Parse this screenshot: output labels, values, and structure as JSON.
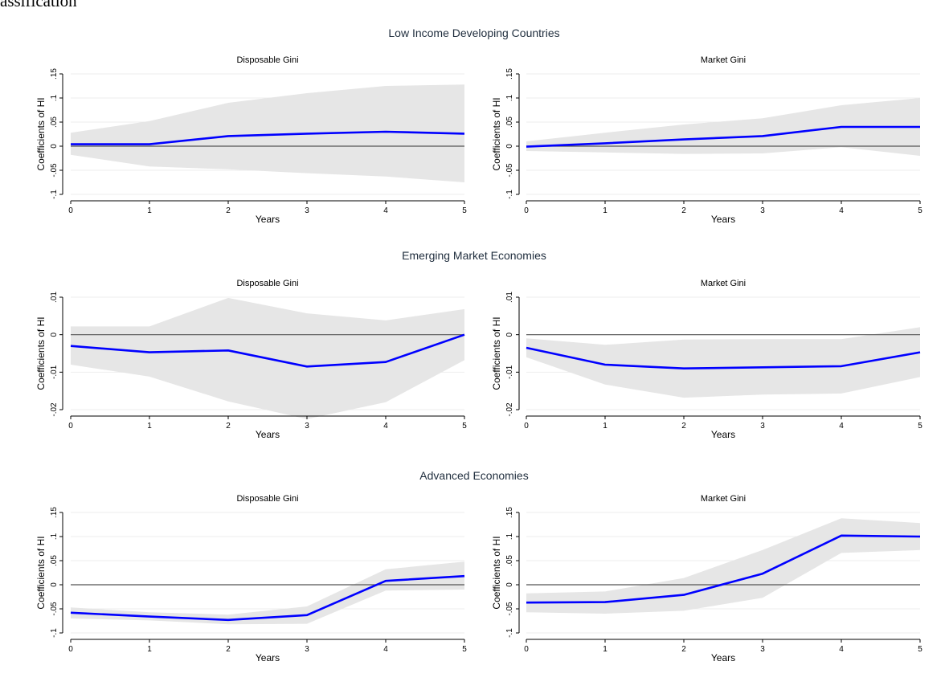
{
  "page": {
    "title_fragment": "assification"
  },
  "figure": {
    "band_color": "#e6e6e6",
    "line_color": "#0000ff",
    "zero_color": "#555555",
    "grid_color": "#eeeeee",
    "label_color": "#1f2d3d"
  },
  "chart_data": [
    {
      "type": "line",
      "group_title": "Low Income Developing Countries",
      "title": "Disposable Gini",
      "xlabel": "Years",
      "ylabel": "Coefficients of HI",
      "x": [
        0,
        1,
        2,
        3,
        4,
        5
      ],
      "xlim": [
        0,
        5
      ],
      "ylim": [
        -0.1,
        0.15
      ],
      "yticks": [
        -0.1,
        -0.05,
        0,
        0.05,
        0.1,
        0.15
      ],
      "ytick_labels": [
        "-.1",
        "-.05",
        "0",
        ".05",
        ".1",
        ".15"
      ],
      "grid": true,
      "series": [
        {
          "role": "estimate",
          "values": [
            0.004,
            0.004,
            0.021,
            0.026,
            0.03,
            0.026
          ]
        },
        {
          "role": "band-upper",
          "values": [
            0.028,
            0.052,
            0.09,
            0.11,
            0.125,
            0.128
          ]
        },
        {
          "role": "band-lower",
          "values": [
            -0.018,
            -0.042,
            -0.048,
            -0.056,
            -0.063,
            -0.075
          ]
        }
      ]
    },
    {
      "type": "line",
      "group_title": "Low Income Developing Countries",
      "title": "Market Gini",
      "xlabel": "Years",
      "ylabel": "Coefficients of HI",
      "x": [
        0,
        1,
        2,
        3,
        4,
        5
      ],
      "xlim": [
        0,
        5
      ],
      "ylim": [
        -0.1,
        0.15
      ],
      "yticks": [
        -0.1,
        -0.05,
        0,
        0.05,
        0.1,
        0.15
      ],
      "ytick_labels": [
        "-.1",
        "-.05",
        "0",
        ".05",
        ".1",
        ".15"
      ],
      "grid": true,
      "series": [
        {
          "role": "estimate",
          "values": [
            -0.001,
            0.006,
            0.014,
            0.021,
            0.04,
            0.04
          ]
        },
        {
          "role": "band-upper",
          "values": [
            0.01,
            0.028,
            0.045,
            0.058,
            0.085,
            0.1
          ]
        },
        {
          "role": "band-lower",
          "values": [
            -0.01,
            -0.013,
            -0.016,
            -0.015,
            -0.002,
            -0.02
          ]
        }
      ]
    },
    {
      "type": "line",
      "group_title": "Emerging Market Economies",
      "title": "Disposable Gini",
      "xlabel": "Years",
      "ylabel": "Coefficients of HI",
      "x": [
        0,
        1,
        2,
        3,
        4,
        5
      ],
      "xlim": [
        0,
        5
      ],
      "ylim": [
        -0.02,
        0.01
      ],
      "yticks": [
        -0.02,
        -0.01,
        0,
        0.01
      ],
      "ytick_labels": [
        "-.02",
        "-.01",
        "0",
        ".01"
      ],
      "grid": true,
      "series": [
        {
          "role": "estimate",
          "values": [
            -0.003,
            -0.0047,
            -0.0042,
            -0.0085,
            -0.0073,
            0.0
          ]
        },
        {
          "role": "band-upper",
          "values": [
            0.0022,
            0.0022,
            0.0098,
            0.0057,
            0.0038,
            0.0068
          ]
        },
        {
          "role": "band-lower",
          "values": [
            -0.008,
            -0.0112,
            -0.0178,
            -0.0225,
            -0.018,
            -0.0068
          ]
        }
      ]
    },
    {
      "type": "line",
      "group_title": "Emerging Market Economies",
      "title": "Market Gini",
      "xlabel": "Years",
      "ylabel": "Coefficients of HI",
      "x": [
        0,
        1,
        2,
        3,
        4,
        5
      ],
      "xlim": [
        0,
        5
      ],
      "ylim": [
        -0.02,
        0.01
      ],
      "yticks": [
        -0.02,
        -0.01,
        0,
        0.01
      ],
      "ytick_labels": [
        "-.02",
        "-.01",
        "0",
        ".01"
      ],
      "grid": true,
      "series": [
        {
          "role": "estimate",
          "values": [
            -0.0035,
            -0.008,
            -0.009,
            -0.0087,
            -0.0084,
            -0.0047
          ]
        },
        {
          "role": "band-upper",
          "values": [
            -0.001,
            -0.0027,
            -0.0013,
            -0.0012,
            -0.0012,
            0.002
          ]
        },
        {
          "role": "band-lower",
          "values": [
            -0.006,
            -0.0133,
            -0.0168,
            -0.016,
            -0.0157,
            -0.0113
          ]
        }
      ]
    },
    {
      "type": "line",
      "group_title": "Advanced Economies",
      "title": "Disposable Gini",
      "xlabel": "Years",
      "ylabel": "Coefficients of HI",
      "x": [
        0,
        1,
        2,
        3,
        4,
        5
      ],
      "xlim": [
        0,
        5
      ],
      "ylim": [
        -0.1,
        0.15
      ],
      "yticks": [
        -0.1,
        -0.05,
        0,
        0.05,
        0.1,
        0.15
      ],
      "ytick_labels": [
        "-.1",
        "-.05",
        "0",
        ".05",
        ".1",
        ".15"
      ],
      "grid": true,
      "series": [
        {
          "role": "estimate",
          "values": [
            -0.058,
            -0.066,
            -0.073,
            -0.063,
            0.008,
            0.018
          ]
        },
        {
          "role": "band-upper",
          "values": [
            -0.047,
            -0.057,
            -0.062,
            -0.045,
            0.032,
            0.048
          ]
        },
        {
          "role": "band-lower",
          "values": [
            -0.07,
            -0.074,
            -0.082,
            -0.081,
            -0.012,
            -0.01
          ]
        }
      ]
    },
    {
      "type": "line",
      "group_title": "Advanced Economies",
      "title": "Market Gini",
      "xlabel": "Years",
      "ylabel": "Coefficients of HI",
      "x": [
        0,
        1,
        2,
        3,
        4,
        5
      ],
      "xlim": [
        0,
        5
      ],
      "ylim": [
        -0.1,
        0.15
      ],
      "yticks": [
        -0.1,
        -0.05,
        0,
        0.05,
        0.1,
        0.15
      ],
      "ytick_labels": [
        "-.1",
        "-.05",
        "0",
        ".05",
        ".1",
        ".15"
      ],
      "grid": true,
      "series": [
        {
          "role": "estimate",
          "values": [
            -0.037,
            -0.036,
            -0.021,
            0.023,
            0.102,
            0.1
          ]
        },
        {
          "role": "band-upper",
          "values": [
            -0.018,
            -0.014,
            0.014,
            0.072,
            0.138,
            0.128
          ]
        },
        {
          "role": "band-lower",
          "values": [
            -0.057,
            -0.06,
            -0.054,
            -0.027,
            0.066,
            0.072
          ]
        }
      ]
    }
  ]
}
